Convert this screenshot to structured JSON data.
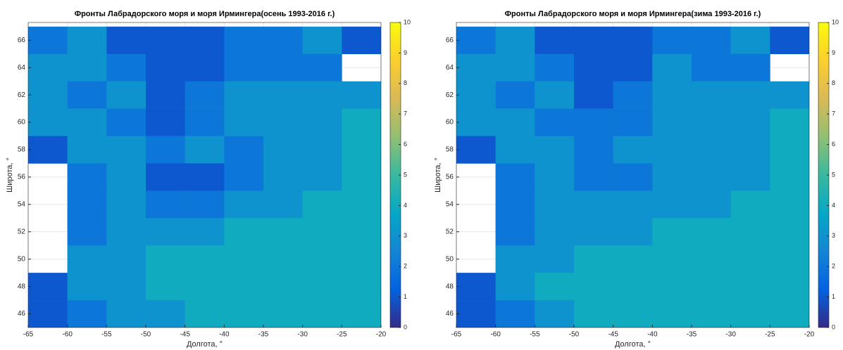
{
  "chart_data": [
    {
      "type": "heatmap",
      "title": "Фронты Лабрадорского моря и моря Ирмингера(осень 1993-2016 г.)",
      "x_label": "Долгота, °",
      "y_label": "Широта, °",
      "x": [
        -62.5,
        -57.5,
        -52.5,
        -47.5,
        -42.5,
        -37.5,
        -32.5,
        -27.5,
        -22.5
      ],
      "y": [
        66,
        64,
        62,
        60,
        58,
        56,
        54,
        52,
        50,
        48,
        46
      ],
      "values": [
        [
          2,
          3,
          1,
          1,
          1,
          2,
          2,
          3,
          1
        ],
        [
          3,
          3,
          2,
          1,
          1,
          2,
          2,
          2,
          null
        ],
        [
          3,
          2,
          3,
          1,
          2,
          3,
          3,
          3,
          3
        ],
        [
          3,
          3,
          2,
          1,
          2,
          3,
          3,
          3,
          4
        ],
        [
          1,
          3,
          3,
          2,
          3,
          2,
          3,
          3,
          4
        ],
        [
          null,
          2,
          3,
          1,
          1,
          2,
          3,
          3,
          4
        ],
        [
          null,
          2,
          3,
          2,
          2,
          3,
          3,
          4,
          4
        ],
        [
          null,
          2,
          3,
          3,
          3,
          4,
          4,
          4,
          4
        ],
        [
          null,
          3,
          3,
          4,
          4,
          4,
          4,
          4,
          4
        ],
        [
          1,
          3,
          3,
          4,
          4,
          4,
          4,
          4,
          4
        ],
        [
          1,
          2,
          3,
          3,
          4,
          4,
          4,
          4,
          4
        ]
      ],
      "xlim": [
        -65,
        -20
      ],
      "xticks": [
        -65,
        -60,
        -55,
        -50,
        -45,
        -40,
        -35,
        -30,
        -25,
        -20
      ],
      "ylim": [
        45,
        67.3
      ],
      "yticks": [
        46,
        48,
        50,
        52,
        54,
        56,
        58,
        60,
        62,
        64,
        66
      ],
      "clim": [
        0,
        10
      ],
      "cticks": [
        0,
        1,
        2,
        3,
        4,
        5,
        6,
        7,
        8,
        9,
        10
      ],
      "colormap": [
        "#352a87",
        "#0363e1",
        "#1485d4",
        "#06a7c6",
        "#38b99e",
        "#92bf73",
        "#d9ba56",
        "#fcce2e",
        "#f9fb0e"
      ],
      "grid": true
    },
    {
      "type": "heatmap",
      "title": "Фронты Лабрадорского моря и моря Ирмингера(зима 1993-2016 г.)",
      "x_label": "Долгота, °",
      "y_label": "Широта, °",
      "x": [
        -62.5,
        -57.5,
        -52.5,
        -47.5,
        -42.5,
        -37.5,
        -32.5,
        -27.5,
        -22.5
      ],
      "y": [
        66,
        64,
        62,
        60,
        58,
        56,
        54,
        52,
        50,
        48,
        46
      ],
      "values": [
        [
          2,
          3,
          1,
          1,
          1,
          2,
          2,
          3,
          1
        ],
        [
          3,
          3,
          2,
          1,
          1,
          3,
          2,
          2,
          null
        ],
        [
          3,
          2,
          3,
          1,
          2,
          3,
          3,
          3,
          3
        ],
        [
          3,
          3,
          2,
          2,
          2,
          3,
          3,
          3,
          4
        ],
        [
          1,
          3,
          3,
          2,
          3,
          3,
          3,
          3,
          4
        ],
        [
          null,
          2,
          3,
          2,
          2,
          3,
          3,
          3,
          4
        ],
        [
          null,
          2,
          3,
          3,
          3,
          3,
          3,
          4,
          4
        ],
        [
          null,
          2,
          3,
          3,
          3,
          4,
          4,
          4,
          4
        ],
        [
          null,
          3,
          3,
          4,
          4,
          4,
          4,
          4,
          4
        ],
        [
          1,
          3,
          4,
          4,
          4,
          4,
          4,
          4,
          4
        ],
        [
          1,
          2,
          3,
          4,
          4,
          4,
          4,
          4,
          4
        ]
      ],
      "xlim": [
        -65,
        -20
      ],
      "xticks": [
        -65,
        -60,
        -55,
        -50,
        -45,
        -40,
        -35,
        -30,
        -25,
        -20
      ],
      "ylim": [
        45,
        67.3
      ],
      "yticks": [
        46,
        48,
        50,
        52,
        54,
        56,
        58,
        60,
        62,
        64,
        66
      ],
      "clim": [
        0,
        10
      ],
      "cticks": [
        0,
        1,
        2,
        3,
        4,
        5,
        6,
        7,
        8,
        9,
        10
      ],
      "colormap": [
        "#352a87",
        "#0363e1",
        "#1485d4",
        "#06a7c6",
        "#38b99e",
        "#92bf73",
        "#d9ba56",
        "#fcce2e",
        "#f9fb0e"
      ],
      "grid": true
    }
  ]
}
